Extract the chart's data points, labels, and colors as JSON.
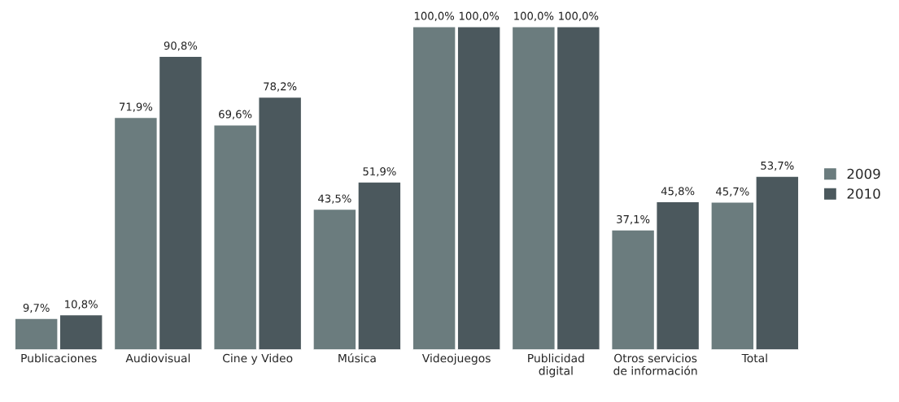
{
  "chart_data": {
    "type": "bar",
    "categories": [
      "Publicaciones",
      "Audiovisual",
      "Cine y Video",
      "Música",
      "Videojuegos",
      "Publicidad\ndigital",
      "Otros servicios\nde información",
      "Total"
    ],
    "series": [
      {
        "name": "2009",
        "color": "#6b7c7e",
        "values": [
          9.7,
          71.9,
          69.6,
          43.5,
          100.0,
          100.0,
          37.1,
          45.7
        ],
        "value_labels": [
          "9,7%",
          "71,9%",
          "69,6%",
          "43,5%",
          "100,0%",
          "100,0%",
          "37,1%",
          "45,7%"
        ]
      },
      {
        "name": "2010",
        "color": "#4b585d",
        "values": [
          10.8,
          90.8,
          78.2,
          51.9,
          100.0,
          100.0,
          45.8,
          53.7
        ],
        "value_labels": [
          "10,8%",
          "90,8%",
          "78,2%",
          "51,9%",
          "100,0%",
          "100,0%",
          "45,8%",
          "53,7%"
        ]
      }
    ],
    "legend": "right",
    "grid": false
  }
}
